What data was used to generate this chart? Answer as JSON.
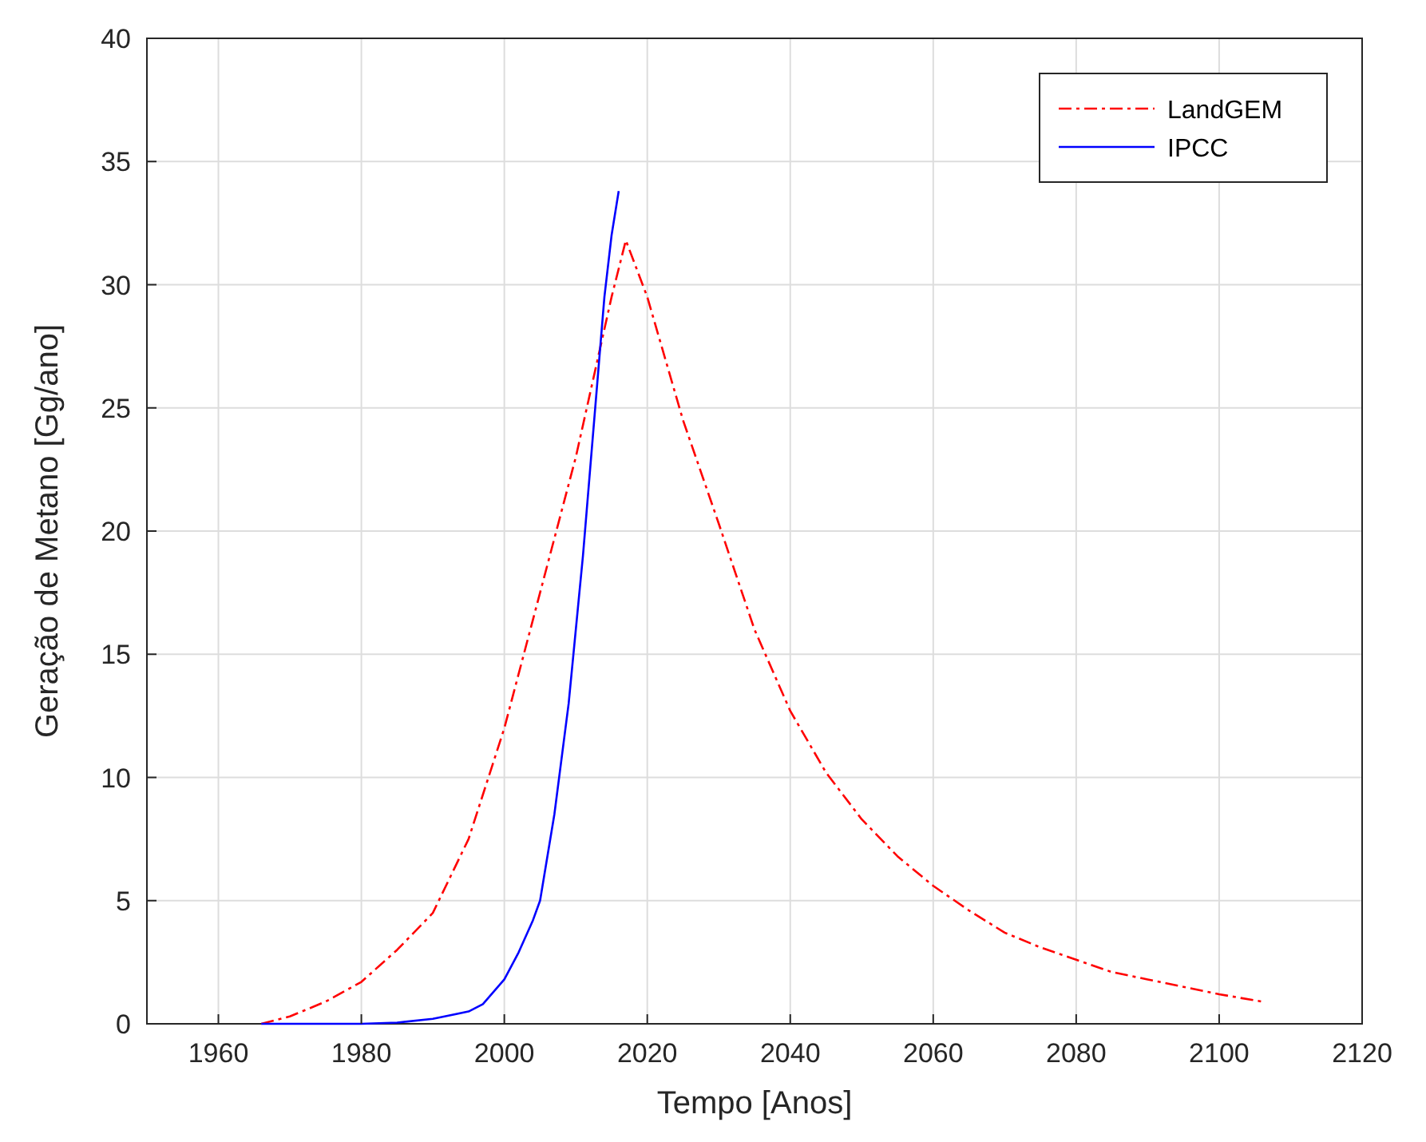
{
  "chart_data": {
    "type": "line",
    "xlabel": "Tempo [Anos]",
    "ylabel": "Geração de Metano [Gg/ano]",
    "xlim": [
      1950,
      2120
    ],
    "xticks": [
      1960,
      1980,
      2000,
      2020,
      2040,
      2060,
      2080,
      2100,
      2120
    ],
    "ylim": [
      0,
      40
    ],
    "yticks": [
      0,
      5,
      10,
      15,
      20,
      25,
      30,
      35,
      40
    ],
    "grid": true,
    "legend": "top right",
    "series": [
      {
        "name": "LandGEM",
        "color": "#ff0000",
        "line_style": "dashdot",
        "x": [
          1966,
          1970,
          1975,
          1980,
          1985,
          1990,
          1995,
          2000,
          2005,
          2010,
          2015,
          2017,
          2020,
          2025,
          2030,
          2035,
          2040,
          2045,
          2050,
          2055,
          2060,
          2065,
          2070,
          2075,
          2080,
          2085,
          2090,
          2095,
          2100,
          2106
        ],
        "values": [
          0,
          0.3,
          0.9,
          1.7,
          3,
          4.5,
          7.5,
          12,
          17.5,
          23,
          29.5,
          31.8,
          29.5,
          24.5,
          20.3,
          16,
          12.7,
          10.2,
          8.3,
          6.8,
          5.6,
          4.6,
          3.7,
          3.1,
          2.6,
          2.1,
          1.8,
          1.5,
          1.2,
          0.9
        ]
      },
      {
        "name": "IPCC",
        "color": "#0000ff",
        "line_style": "solid",
        "x": [
          1966,
          1980,
          1985,
          1990,
          1995,
          1997,
          2000,
          2002,
          2004,
          2005,
          2007,
          2009,
          2011,
          2012,
          2013,
          2014,
          2015,
          2016
        ],
        "values": [
          0,
          0,
          0.05,
          0.2,
          0.5,
          0.8,
          1.8,
          2.9,
          4.2,
          5,
          8.5,
          13,
          19,
          22.5,
          26,
          29.5,
          32,
          33.8
        ]
      }
    ]
  }
}
